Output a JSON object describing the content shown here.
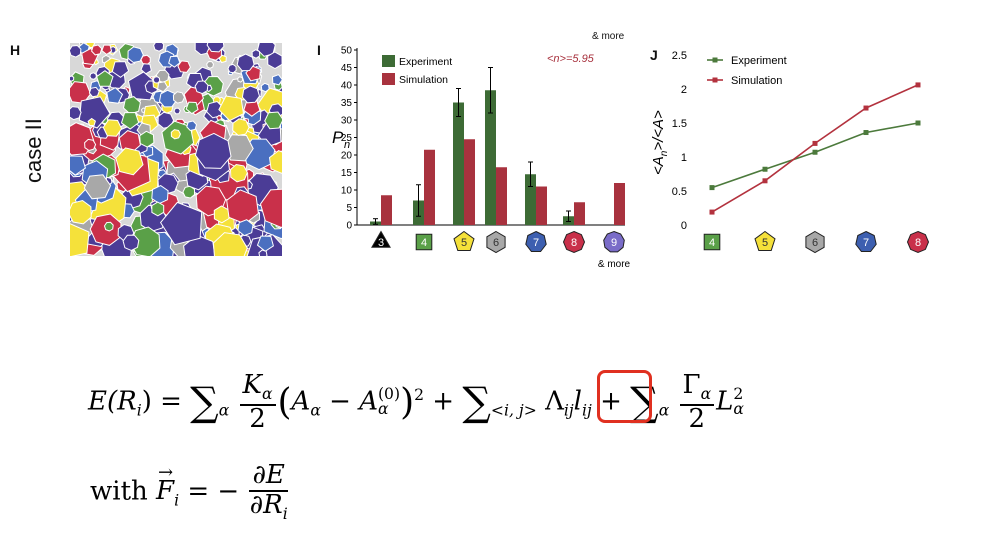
{
  "panel_h": {
    "letter": "H",
    "case_label": "case II",
    "tissue_colors": [
      "#4b3c96",
      "#f5e13a",
      "#a8a8a8",
      "#4a6fc0",
      "#c9304a",
      "#5aa048"
    ]
  },
  "panel_i": {
    "letter": "I",
    "mean_label": "<n>=5.95",
    "top_cut_text": "& more",
    "more_label": "& more",
    "ylabel": "P",
    "ylabel_sub": "n"
  },
  "panel_j": {
    "letter": "J"
  },
  "chart_data": [
    {
      "type": "bar",
      "panel": "I",
      "categories": [
        "3",
        "4",
        "5",
        "6",
        "7",
        "8",
        "9"
      ],
      "series": [
        {
          "name": "Experiment",
          "color": "#3d6b35",
          "values": [
            1,
            7,
            35,
            38.5,
            14.5,
            2.5,
            0
          ],
          "errors": [
            0.8,
            4.5,
            4,
            6.5,
            3.5,
            1.5,
            0
          ]
        },
        {
          "name": "Simulation",
          "color": "#a8323e",
          "values": [
            8.5,
            21.5,
            24.5,
            16.5,
            11,
            6.5,
            12
          ],
          "errors": [
            0,
            0,
            0,
            0,
            0,
            0,
            0
          ]
        }
      ],
      "category_colors": [
        "#000000",
        "#5aa048",
        "#f5e13a",
        "#a8a8a8",
        "#3d5fb0",
        "#c9304a",
        "#7a6cc8"
      ],
      "category_shapes": [
        "triangle",
        "square",
        "pentagon",
        "hexagon",
        "heptagon",
        "octagon",
        "nonagon"
      ],
      "ylim": [
        0,
        50
      ],
      "yticks": [
        "0",
        "5",
        "10",
        "15",
        "20",
        "25",
        "30",
        "35",
        "40",
        "45",
        "50"
      ],
      "legend": "top-left"
    },
    {
      "type": "line",
      "panel": "J",
      "categories": [
        "4",
        "5",
        "6",
        "7",
        "8"
      ],
      "series": [
        {
          "name": "Experiment",
          "color": "#4c7a3c",
          "values": [
            0.55,
            0.82,
            1.07,
            1.36,
            1.5
          ]
        },
        {
          "name": "Simulation",
          "color": "#b3323e",
          "values": [
            0.19,
            0.65,
            1.2,
            1.72,
            2.06
          ]
        }
      ],
      "category_colors": [
        "#5aa048",
        "#f5e13a",
        "#a8a8a8",
        "#3d5fb0",
        "#c9304a"
      ],
      "category_shapes": [
        "square",
        "pentagon",
        "hexagon",
        "heptagon",
        "octagon"
      ],
      "ylim": [
        0,
        2.5
      ],
      "yticks": [
        "0",
        "0.5",
        "1",
        "1.5",
        "2",
        "2.5"
      ],
      "legend": "top-left"
    }
  ],
  "equation": {
    "lhs": "E(R",
    "lhs_sub": "i",
    "lhs_close": ") =",
    "sum": "∑",
    "alpha": "α",
    "K": "K",
    "two": "2",
    "A": "A",
    "minus": "−",
    "A0_sup": "(0)",
    "square": "2",
    "plus": "+",
    "pair_sub": "<i, j>",
    "Lambda": "Λ",
    "ij": "ij",
    "l": "l",
    "Gamma": "Γ",
    "L": "L",
    "with": "with",
    "F": "F",
    "equals_minus": "= −",
    "dE": "∂E",
    "dR": "∂R"
  }
}
